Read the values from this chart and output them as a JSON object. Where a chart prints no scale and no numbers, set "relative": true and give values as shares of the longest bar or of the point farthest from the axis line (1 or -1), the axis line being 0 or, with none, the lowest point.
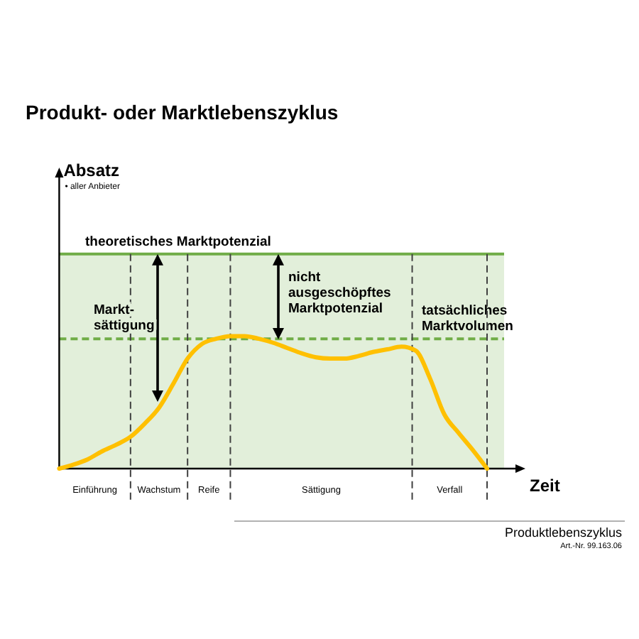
{
  "chart_data": {
    "type": "line",
    "relative": true,
    "title": "Produkt- oder Marktlebenszyklus",
    "xlabel": "Zeit",
    "categories": [
      null,
      null,
      null,
      null,
      null,
      null,
      null,
      null,
      null,
      null,
      null,
      null,
      null,
      null,
      null,
      null,
      null,
      null,
      null,
      null,
      null,
      null,
      null,
      null,
      null,
      null,
      null,
      null,
      null,
      null,
      null
    ],
    "series": [
      {
        "color": "#ffc000",
        "values": [
          0,
          0.03,
          0.07,
          0.13,
          0.18,
          0.24,
          0.34,
          0.46,
          0.64,
          0.83,
          0.94,
          0.98,
          1,
          1,
          0.98,
          0.95,
          0.91,
          0.87,
          0.84,
          0.83,
          0.83,
          0.85,
          0.88,
          0.9,
          0.92,
          0.89,
          0.68,
          0.41,
          0.27,
          0.14,
          0
        ]
      }
    ],
    "marker": "none",
    "line_style": "solid",
    "grid": "x",
    "ref_lines": [
      {
        "axis": "y",
        "value": 1.62,
        "label": "theoretisches Marktpotenzial",
        "color": "#70ad47",
        "line_style": "solid"
      },
      {
        "axis": "y",
        "value": 0.98,
        "label": "tatsächliches\nMarktvolumen",
        "color": "#70ad47",
        "line_style": "dashed"
      }
    ],
    "bands": [
      {
        "axis": "y",
        "from": 0,
        "to": 1.62,
        "color": "#e2efda"
      }
    ],
    "annotations": [
      "• aller Anbieter",
      "Markt-\nsättigung",
      "nicht\nausgeschöpftes\nMarktpotenzial",
      "Produktlebenszyklus",
      "Art.-Nr. 99.163.06",
      "Absatz",
      "Einführung",
      "Wachstum",
      "Reife",
      "Sättigung",
      "Verfall"
    ]
  }
}
